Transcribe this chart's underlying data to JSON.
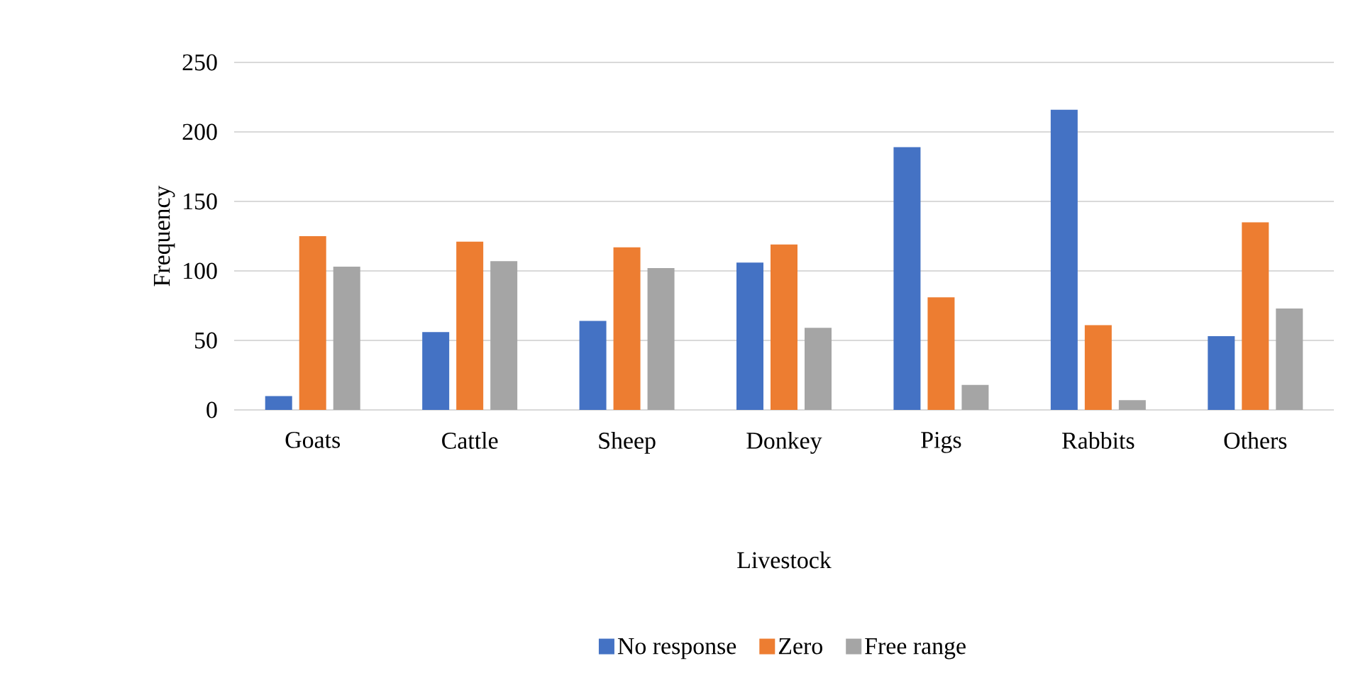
{
  "chart_data": {
    "type": "bar",
    "xlabel": "Livestock",
    "ylabel": "Frequency",
    "categories": [
      "Goats",
      "Cattle",
      "Sheep",
      "Donkey",
      "Pigs",
      "Rabbits",
      "Others"
    ],
    "series": [
      {
        "name": "No response",
        "color": "#4472c4",
        "values": [
          10,
          56,
          64,
          106,
          189,
          216,
          53
        ]
      },
      {
        "name": "Zero",
        "color": "#ed7d31",
        "values": [
          125,
          121,
          117,
          119,
          81,
          61,
          135
        ]
      },
      {
        "name": "Free range",
        "color": "#a5a5a5",
        "values": [
          103,
          107,
          102,
          59,
          18,
          7,
          73
        ]
      }
    ],
    "ylim": [
      0,
      250
    ],
    "yticks": [
      0,
      50,
      100,
      150,
      200,
      250
    ],
    "grid": "y",
    "legend": "bottom"
  }
}
